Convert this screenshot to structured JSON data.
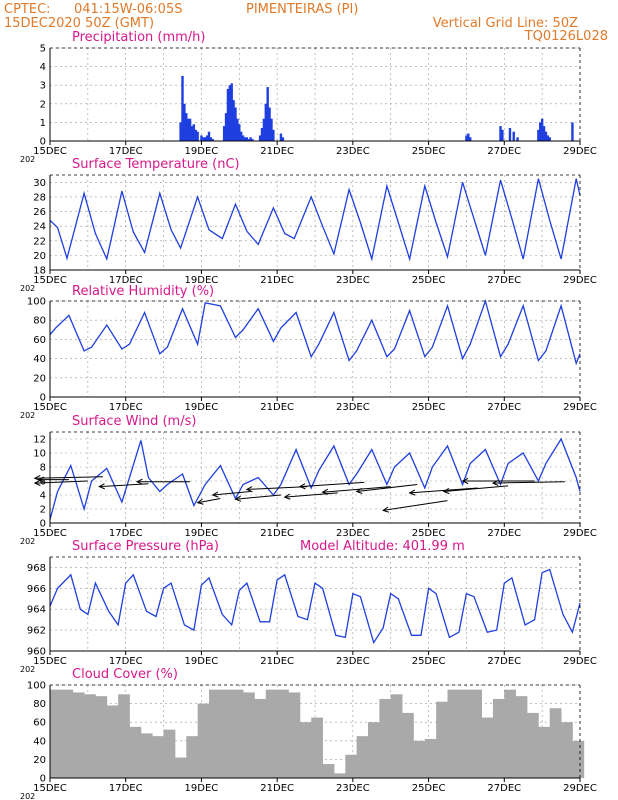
{
  "header": {
    "center_label": "CPTEC:",
    "coords": "041:15W-06:05S",
    "station": "PIMENTEIRAS (PI)",
    "run": "15DEC2020 50Z (GMT)",
    "grid_note": "Vertical Grid Line: 50Z",
    "model_id": "TQ0126L028"
  },
  "x_axis": {
    "ticks": [
      "15DEC",
      "17DEC",
      "19DEC",
      "21DEC",
      "23DEC",
      "25DEC",
      "27DEC",
      "29DEC"
    ],
    "year_stub": "202"
  },
  "colors": {
    "line": "#1f3fe0",
    "bar": "#1f3fe0",
    "cloud": "#a9a9a9",
    "title": "#d8188a",
    "header": "#e07a2a",
    "arrow": "#000000"
  },
  "chart_data": [
    {
      "type": "bar",
      "title": "Precipitation (mm/h)",
      "ylim": [
        0,
        5
      ],
      "yticks": [
        "0",
        "1",
        "2",
        "3",
        "4",
        "5"
      ],
      "x_unit": "days since 15DEC 00Z",
      "x": [
        3.45,
        3.5,
        3.55,
        3.6,
        3.65,
        3.7,
        3.75,
        3.8,
        3.85,
        3.9,
        4.0,
        4.05,
        4.1,
        4.15,
        4.2,
        4.25,
        4.3,
        4.6,
        4.65,
        4.7,
        4.75,
        4.8,
        4.85,
        4.9,
        4.95,
        5.0,
        5.05,
        5.1,
        5.15,
        5.2,
        5.25,
        5.3,
        5.35,
        5.55,
        5.6,
        5.65,
        5.7,
        5.75,
        5.8,
        5.85,
        5.9,
        6.1,
        6.15,
        11.0,
        11.05,
        11.1,
        11.9,
        11.95,
        12.15,
        12.25,
        12.35,
        12.9,
        12.95,
        13.0,
        13.05,
        13.1,
        13.15,
        13.2,
        13.8
      ],
      "values": [
        1.0,
        3.5,
        2.0,
        1.5,
        1.2,
        1.2,
        0.8,
        0.9,
        0.6,
        0.5,
        0.3,
        0.2,
        0.2,
        0.3,
        0.5,
        0.2,
        0.1,
        0.8,
        1.5,
        2.8,
        3.0,
        3.1,
        2.2,
        1.8,
        1.2,
        0.9,
        0.5,
        0.3,
        0.2,
        0.2,
        0.1,
        0.2,
        0.1,
        0.3,
        0.7,
        1.2,
        2.0,
        2.9,
        1.8,
        1.2,
        0.6,
        0.4,
        0.2,
        0.3,
        0.4,
        0.2,
        0.8,
        0.6,
        0.7,
        0.5,
        0.2,
        0.6,
        1.0,
        1.2,
        0.8,
        0.5,
        0.3,
        0.2,
        1.0
      ]
    },
    {
      "type": "line",
      "title": "Surface Temperature (nC)",
      "ylim": [
        18,
        31
      ],
      "yticks": [
        "18",
        "20",
        "22",
        "24",
        "26",
        "28",
        "30"
      ],
      "x_unit": "days since 15DEC 00Z",
      "x": [
        0.0,
        0.2,
        0.45,
        0.9,
        1.2,
        1.5,
        1.9,
        2.2,
        2.5,
        2.9,
        3.2,
        3.45,
        3.9,
        4.2,
        4.55,
        4.9,
        5.2,
        5.5,
        5.9,
        6.2,
        6.45,
        6.9,
        7.2,
        7.5,
        7.9,
        8.2,
        8.5,
        8.9,
        9.2,
        9.5,
        9.9,
        10.2,
        10.5,
        10.9,
        11.2,
        11.5,
        11.9,
        12.2,
        12.5,
        12.9,
        13.2,
        13.5,
        13.9,
        14.0
      ],
      "values": [
        24.8,
        23.8,
        19.6,
        28.5,
        23,
        19.5,
        28.8,
        23.2,
        20.4,
        28.5,
        23.5,
        21.0,
        28,
        23.5,
        22.3,
        27,
        23.3,
        21.5,
        26.5,
        23,
        22.3,
        28,
        24,
        20.2,
        29,
        24.5,
        19.5,
        29.5,
        24.5,
        19.5,
        29.5,
        24.5,
        19.8,
        30,
        25,
        20,
        30.3,
        25,
        19.5,
        30.5,
        24.8,
        19.5,
        30.5,
        28.2
      ]
    },
    {
      "type": "line",
      "title": "Relative Humidity (%)",
      "ylim": [
        0,
        100
      ],
      "yticks": [
        "0",
        "20",
        "40",
        "60",
        "80",
        "100"
      ],
      "x_unit": "days since 15DEC 00Z",
      "x": [
        0.0,
        0.15,
        0.5,
        0.9,
        1.1,
        1.5,
        1.9,
        2.1,
        2.5,
        2.9,
        3.1,
        3.5,
        3.9,
        4.1,
        4.5,
        4.9,
        5.1,
        5.5,
        5.9,
        6.1,
        6.5,
        6.9,
        7.1,
        7.5,
        7.9,
        8.1,
        8.5,
        8.9,
        9.1,
        9.5,
        9.9,
        10.1,
        10.5,
        10.9,
        11.1,
        11.5,
        11.9,
        12.1,
        12.5,
        12.9,
        13.1,
        13.5,
        13.9,
        14.0
      ],
      "values": [
        65,
        72,
        85,
        48,
        52,
        75,
        50,
        55,
        88,
        45,
        52,
        92,
        55,
        98,
        95,
        62,
        70,
        92,
        58,
        72,
        88,
        42,
        55,
        88,
        38,
        48,
        80,
        42,
        50,
        90,
        42,
        52,
        95,
        40,
        55,
        100,
        42,
        55,
        95,
        38,
        48,
        95,
        35,
        45
      ]
    },
    {
      "type": "line",
      "title": "Surface Wind (m/s)",
      "ylim": [
        0,
        13
      ],
      "yticks": [
        "0",
        "2",
        "4",
        "6",
        "8",
        "10",
        "12"
      ],
      "x_unit": "days since 15DEC 00Z",
      "x": [
        0.0,
        0.2,
        0.55,
        0.9,
        1.1,
        1.5,
        1.9,
        2.1,
        2.4,
        2.6,
        2.9,
        3.1,
        3.5,
        3.8,
        4.1,
        4.5,
        4.9,
        5.1,
        5.5,
        5.9,
        6.1,
        6.5,
        6.9,
        7.1,
        7.5,
        7.9,
        8.1,
        8.5,
        8.9,
        9.1,
        9.5,
        9.9,
        10.1,
        10.5,
        10.9,
        11.1,
        11.5,
        11.9,
        12.1,
        12.5,
        12.9,
        13.1,
        13.5,
        13.9,
        14.0
      ],
      "values": [
        0.5,
        4.5,
        8.2,
        2.0,
        6.0,
        7.8,
        3.0,
        6.5,
        11.8,
        6.5,
        4.5,
        5.5,
        7.0,
        2.5,
        5.5,
        8.2,
        3.5,
        5.5,
        6.5,
        4.0,
        5.5,
        10.5,
        5.0,
        7.5,
        11.0,
        5.5,
        7.0,
        10.5,
        5.5,
        8.0,
        10.0,
        5.0,
        8.0,
        11.0,
        5.5,
        8.5,
        10.5,
        5.5,
        8.5,
        10.0,
        6.0,
        8.5,
        12.0,
        6.5,
        4.5
      ],
      "vectors_x": [
        0.5,
        1.0,
        1.4,
        2.6,
        3.7,
        4.5,
        5.3,
        6.1,
        6.8,
        7.6,
        8.3,
        9.0,
        9.7,
        10.5,
        11.3,
        12.1,
        12.8,
        13.6
      ],
      "vectors_speed": [
        6.2,
        6.0,
        6.6,
        5.6,
        5.9,
        3.5,
        4.5,
        4.0,
        5.2,
        4.3,
        5.8,
        5.2,
        5.5,
        3.2,
        5.0,
        5.3,
        6.0,
        5.9
      ],
      "vectors_dx": [
        -0.8,
        -1.4,
        -1.8,
        -1.3,
        -1.4,
        -0.6,
        -1.0,
        -1.2,
        -1.6,
        -1.4,
        -1.7,
        -1.8,
        -1.6,
        -1.7,
        -1.8,
        -1.7,
        -1.9,
        -1.9
      ],
      "vectors_dy": [
        0.0,
        0.3,
        0.2,
        0.4,
        0.0,
        0.6,
        0.5,
        0.6,
        0.4,
        0.6,
        0.6,
        0.8,
        1.0,
        1.4,
        0.7,
        0.8,
        0.0,
        0.2
      ]
    },
    {
      "type": "line",
      "title": "Surface Pressure (hPa)",
      "subtitle": "Model Altitude: 401.99 m",
      "ylim": [
        960,
        969
      ],
      "yticks": [
        "960",
        "962",
        "964",
        "966",
        "968"
      ],
      "x_unit": "days since 15DEC 00Z",
      "x": [
        0.0,
        0.2,
        0.55,
        0.8,
        1.0,
        1.2,
        1.55,
        1.8,
        2.0,
        2.2,
        2.55,
        2.8,
        3.0,
        3.2,
        3.55,
        3.8,
        4.0,
        4.2,
        4.55,
        4.8,
        5.0,
        5.2,
        5.55,
        5.8,
        6.0,
        6.2,
        6.55,
        6.8,
        7.0,
        7.2,
        7.55,
        7.8,
        8.0,
        8.2,
        8.55,
        8.8,
        9.0,
        9.2,
        9.55,
        9.8,
        10.0,
        10.2,
        10.55,
        10.8,
        11.0,
        11.2,
        11.55,
        11.8,
        12.0,
        12.2,
        12.55,
        12.8,
        13.0,
        13.2,
        13.55,
        13.8,
        14.0
      ],
      "values": [
        964.3,
        966,
        967.3,
        964,
        963.5,
        966.5,
        963.8,
        962.5,
        966.5,
        967.3,
        963.8,
        963.3,
        966,
        966.5,
        962.5,
        962,
        966.3,
        967,
        963.5,
        962.5,
        965.8,
        966.5,
        962.8,
        962.8,
        966.8,
        967.3,
        963.3,
        963,
        966.5,
        966,
        961.5,
        961.3,
        965.5,
        965.2,
        960.8,
        962.2,
        965.5,
        965,
        961.5,
        961.5,
        966,
        965.5,
        961.3,
        961.8,
        965.5,
        965.2,
        961.8,
        962,
        966.5,
        967,
        962.5,
        963,
        967.5,
        967.8,
        963.5,
        961.8,
        964.6
      ]
    },
    {
      "type": "bar",
      "title": "Cloud Cover (%)",
      "ylim": [
        0,
        100
      ],
      "yticks": [
        "0",
        "20",
        "40",
        "60",
        "80",
        "100"
      ],
      "x_unit": "days since 15DEC 00Z",
      "x": [
        0.0,
        0.3,
        0.6,
        0.9,
        1.2,
        1.5,
        1.8,
        2.1,
        2.4,
        2.7,
        3.0,
        3.3,
        3.6,
        3.9,
        4.2,
        4.5,
        4.8,
        5.1,
        5.4,
        5.7,
        6.0,
        6.3,
        6.6,
        6.9,
        7.2,
        7.5,
        7.8,
        8.1,
        8.4,
        8.7,
        9.0,
        9.3,
        9.6,
        9.9,
        10.2,
        10.5,
        10.8,
        11.1,
        11.4,
        11.7,
        12.0,
        12.3,
        12.6,
        12.9,
        13.2,
        13.5,
        13.8
      ],
      "values": [
        95,
        95,
        92,
        90,
        88,
        78,
        90,
        55,
        48,
        45,
        52,
        22,
        45,
        80,
        95,
        95,
        95,
        92,
        85,
        95,
        95,
        92,
        60,
        65,
        15,
        5,
        25,
        45,
        60,
        85,
        90,
        70,
        40,
        42,
        82,
        95,
        95,
        95,
        65,
        85,
        95,
        88,
        70,
        55,
        75,
        60,
        40
      ]
    }
  ]
}
